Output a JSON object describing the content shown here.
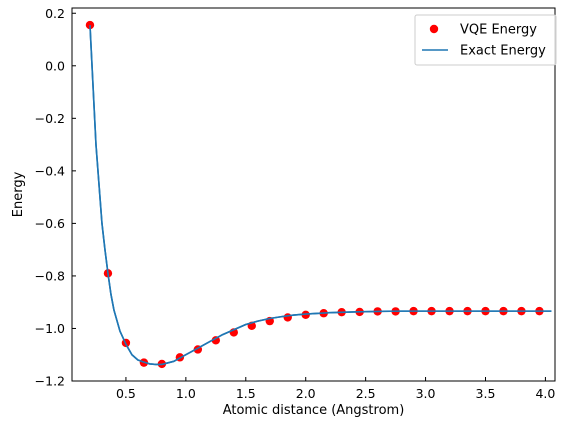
{
  "chart_data": {
    "type": "scatter",
    "xlabel": "Atomic distance (Angstrom)",
    "ylabel": "Energy",
    "xlim": [
      0.05,
      4.08
    ],
    "ylim": [
      -1.2,
      0.22
    ],
    "xticks": [
      0.5,
      1.0,
      1.5,
      2.0,
      2.5,
      3.0,
      3.5,
      4.0
    ],
    "xtick_labels": [
      "0.5",
      "1.0",
      "1.5",
      "2.0",
      "2.5",
      "3.0",
      "3.5",
      "4.0"
    ],
    "yticks": [
      -1.2,
      -1.0,
      -0.8,
      -0.6,
      -0.4,
      -0.2,
      0.0,
      0.2
    ],
    "ytick_labels": [
      "−1.2",
      "−1.0",
      "−0.8",
      "−0.6",
      "−0.4",
      "−0.2",
      "0.0",
      "0.2"
    ],
    "grid": false,
    "legend_position": "top-right",
    "series": [
      {
        "name": "VQE Energy",
        "kind": "scatter",
        "color": "#ff0000",
        "x": [
          0.2,
          0.35,
          0.5,
          0.65,
          0.8,
          0.95,
          1.1,
          1.25,
          1.4,
          1.55,
          1.7,
          1.85,
          2.0,
          2.15,
          2.3,
          2.45,
          2.6,
          2.75,
          2.9,
          3.05,
          3.2,
          3.35,
          3.5,
          3.65,
          3.8,
          3.95
        ],
        "y": [
          0.155,
          -0.79,
          -1.055,
          -1.13,
          -1.135,
          -1.11,
          -1.08,
          -1.045,
          -1.015,
          -0.99,
          -0.972,
          -0.958,
          -0.948,
          -0.942,
          -0.938,
          -0.937,
          -0.935,
          -0.935,
          -0.934,
          -0.934,
          -0.934,
          -0.934,
          -0.934,
          -0.934,
          -0.934,
          -0.934
        ]
      },
      {
        "name": "Exact Energy",
        "kind": "line",
        "color": "#1f77b4",
        "x": [
          0.2,
          0.25,
          0.3,
          0.325,
          0.35,
          0.375,
          0.4,
          0.45,
          0.5,
          0.55,
          0.6,
          0.65,
          0.7,
          0.75,
          0.8,
          0.9,
          1.0,
          1.1,
          1.2,
          1.3,
          1.4,
          1.5,
          1.6,
          1.7,
          1.8,
          1.9,
          2.0,
          2.2,
          2.4,
          2.6,
          2.8,
          3.0,
          3.5,
          4.05
        ],
        "y": [
          0.155,
          -0.3,
          -0.6,
          -0.7,
          -0.79,
          -0.87,
          -0.93,
          -1.01,
          -1.06,
          -1.1,
          -1.12,
          -1.128,
          -1.135,
          -1.137,
          -1.137,
          -1.125,
          -1.1,
          -1.075,
          -1.05,
          -1.025,
          -1.005,
          -0.985,
          -0.972,
          -0.962,
          -0.955,
          -0.949,
          -0.945,
          -0.94,
          -0.937,
          -0.935,
          -0.934,
          -0.934,
          -0.934,
          -0.934
        ]
      }
    ]
  }
}
